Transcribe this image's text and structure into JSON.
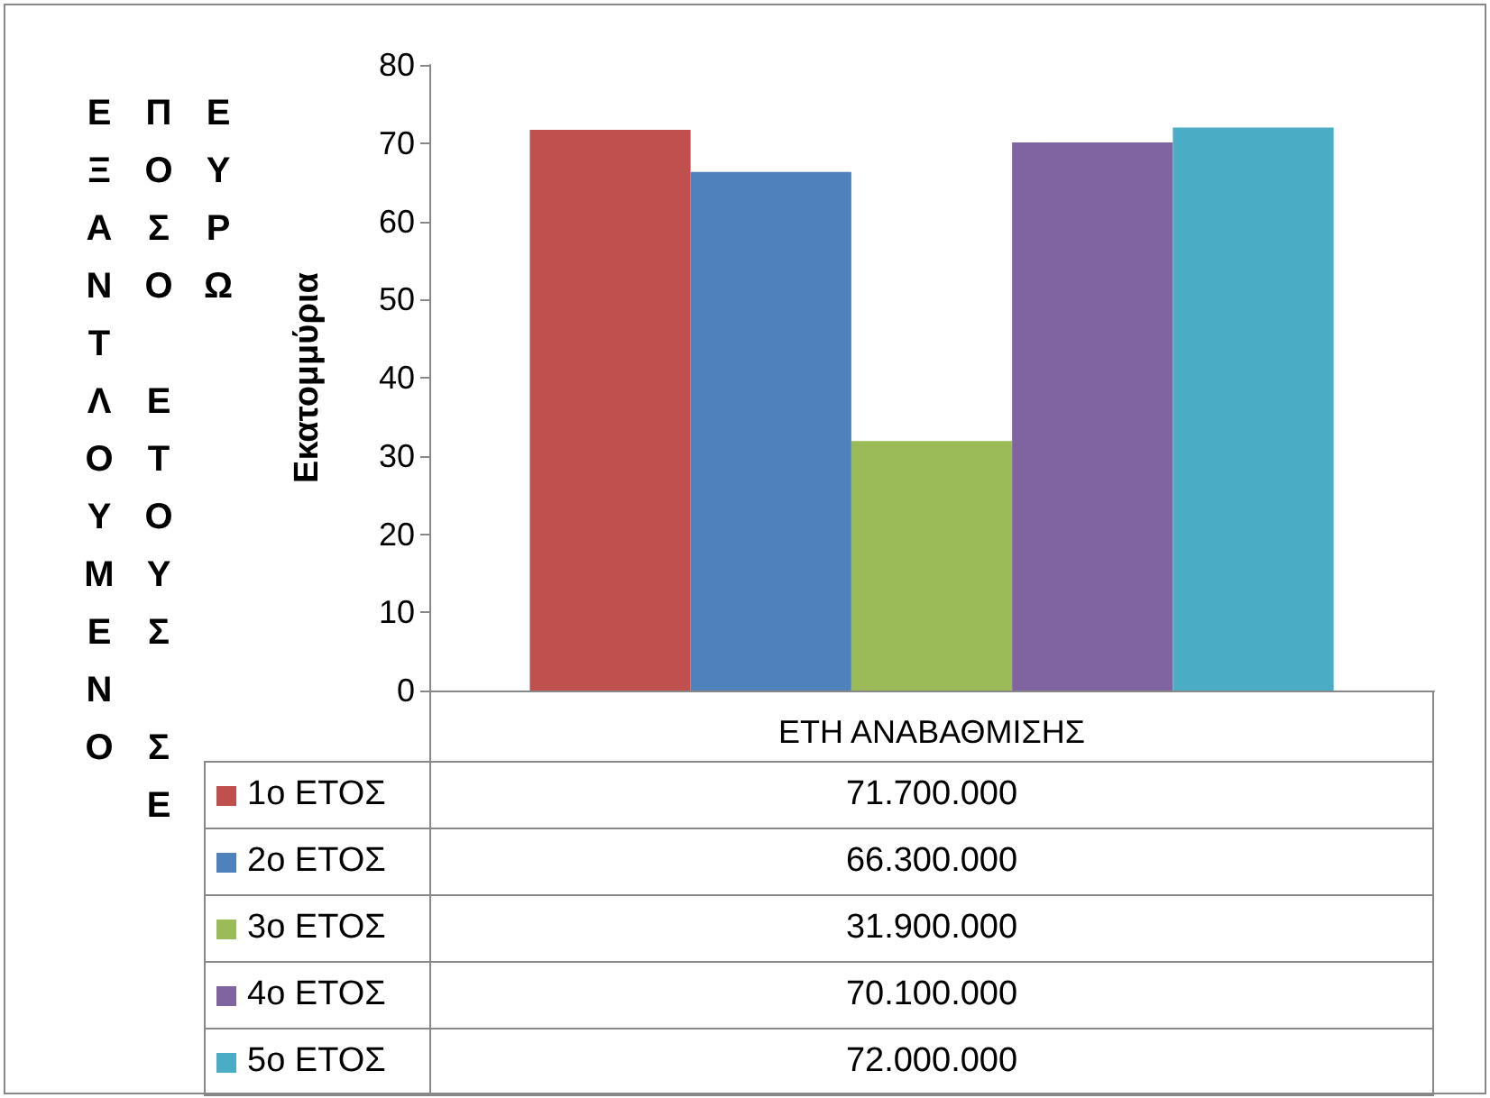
{
  "chart_data": {
    "type": "bar",
    "title": "ΕΞΑΝΤΛΟΥΜΕΝΟ ΠΟΣΟ ΕΤΟΥΣ ΣΕ ΕΥΡΩ",
    "ylabel": "Εκατομμύρια",
    "categories": [
      "ΕΤΗ ΑΝΑΒΑΘΜΙΣΗΣ"
    ],
    "series": [
      {
        "name": "1ο ΕΤΟΣ",
        "color": "#c0504d",
        "values": [
          71.7
        ]
      },
      {
        "name": "2ο ΕΤΟΣ",
        "color": "#4f81bd",
        "values": [
          66.3
        ]
      },
      {
        "name": "3ο ΕΤΟΣ",
        "color": "#9bbb59",
        "values": [
          31.9
        ]
      },
      {
        "name": "4ο ΕΤΟΣ",
        "color": "#8064a2",
        "values": [
          70.1
        ]
      },
      {
        "name": "5ο ΕΤΟΣ",
        "color": "#4bacc6",
        "values": [
          72.0
        ]
      }
    ],
    "annotations": [
      "71.700.000",
      "66.300.000",
      "31.900.000",
      "70.100.000",
      "72.000.000"
    ],
    "ylim": [
      0,
      80
    ],
    "yticks": [
      0,
      10,
      20,
      30,
      40,
      50,
      60,
      70,
      80
    ],
    "grid": false,
    "legend": "bottom"
  }
}
